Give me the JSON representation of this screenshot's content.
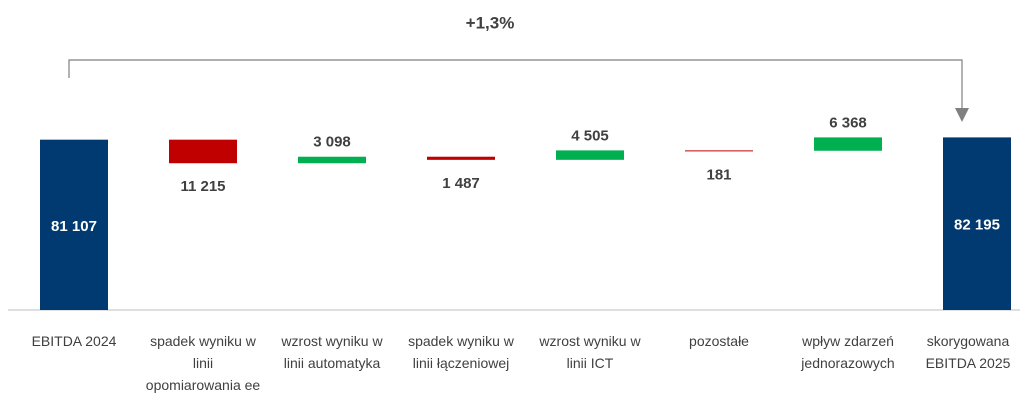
{
  "chart_data": {
    "type": "waterfall",
    "annotation": "+1,3%",
    "categories": [
      "EBITDA 2024",
      "spadek wyniku w linii opomiarowania ee",
      "wzrost wyniku w linii automatyka",
      "spadek wyniku w linii łączeniowej",
      "wzrost wyniku w linii ICT",
      "pozostałe",
      "wpływ zdarzeń jednorazowych",
      "skorygowana EBITDA 2025"
    ],
    "measure": [
      "total",
      "relative",
      "relative",
      "relative",
      "relative",
      "relative",
      "relative",
      "total"
    ],
    "values": [
      81107,
      -11215,
      3098,
      -1487,
      4505,
      -181,
      6368,
      82195
    ],
    "value_labels": [
      "81 107",
      "11 215",
      "3 098",
      "1 487",
      "4 505",
      "181",
      "6 368",
      "82 195"
    ],
    "total_color": "#003a70",
    "increase_color": "#00b050",
    "decrease_color": "#c00000",
    "ylim": [
      0,
      100000
    ]
  }
}
